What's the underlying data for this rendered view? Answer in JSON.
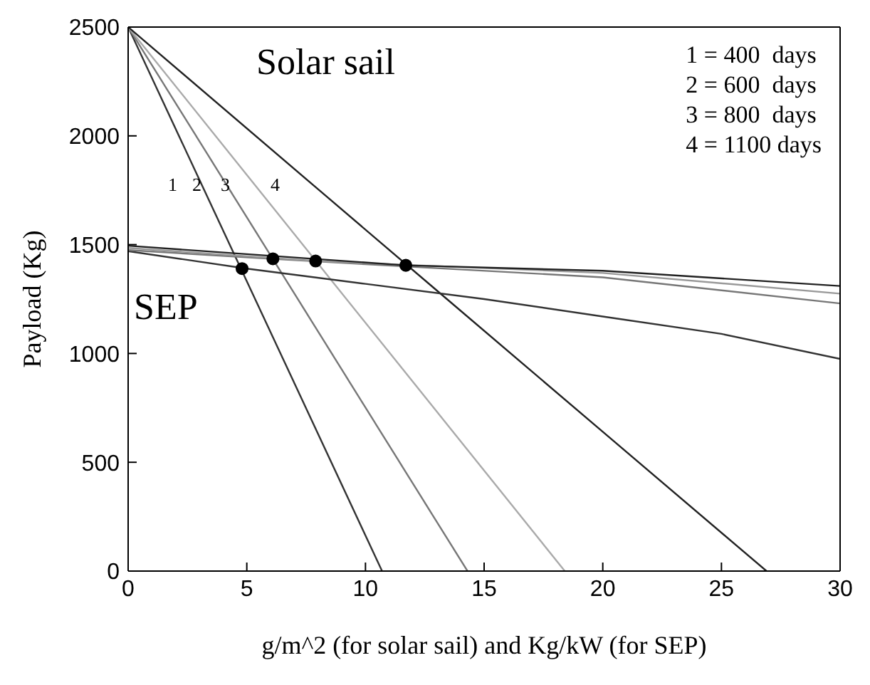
{
  "chart_data": {
    "type": "line",
    "xlabel": "g/m^2  (for solar sail) and Kg/kW (for SEP)",
    "ylabel": "Payload (Kg)",
    "xlim": [
      0,
      30
    ],
    "ylim": [
      0,
      2500
    ],
    "xticks": [
      0,
      5,
      10,
      15,
      20,
      25,
      30
    ],
    "yticks": [
      0,
      500,
      1000,
      1500,
      2000,
      2500
    ],
    "grid": false,
    "marker": "none",
    "line_style": "solid",
    "series": [
      {
        "color": "#333333",
        "x": [
          0,
          10.7
        ],
        "values": [
          2500,
          0
        ]
      },
      {
        "color": "#777777",
        "x": [
          0,
          14.3
        ],
        "values": [
          2500,
          0
        ]
      },
      {
        "color": "#aaaaaa",
        "x": [
          0,
          18.4
        ],
        "values": [
          2500,
          0
        ]
      },
      {
        "color": "#222222",
        "x": [
          0,
          8,
          13,
          20,
          26.9
        ],
        "values": [
          2500,
          1755,
          1290,
          640,
          0
        ]
      },
      {
        "color": "#333333",
        "x": [
          0,
          5,
          10,
          15,
          20,
          25,
          30
        ],
        "values": [
          1470,
          1390,
          1320,
          1250,
          1170,
          1090,
          975
        ]
      },
      {
        "color": "#777777",
        "x": [
          0,
          6.1,
          10,
          20,
          30
        ],
        "values": [
          1475,
          1435,
          1410,
          1350,
          1230
        ]
      },
      {
        "color": "#999999",
        "x": [
          0,
          7.9,
          10,
          20,
          30
        ],
        "values": [
          1485,
          1425,
          1415,
          1370,
          1275
        ]
      },
      {
        "color": "#222222",
        "x": [
          0,
          11.7,
          20,
          30
        ],
        "values": [
          1495,
          1405,
          1380,
          1310
        ]
      },
      {
        "type": "scatter",
        "color": "#000000",
        "marker": "circle",
        "x": [
          4.8,
          6.1,
          7.9,
          11.7
        ],
        "values": [
          1390,
          1435,
          1425,
          1405
        ]
      }
    ],
    "annotations": [
      "Solar sail",
      "SEP",
      "1",
      "2",
      "3",
      "4",
      "1 = 400  days",
      "2 = 600  days",
      "3 = 800  days",
      "4 = 1100 days"
    ]
  }
}
